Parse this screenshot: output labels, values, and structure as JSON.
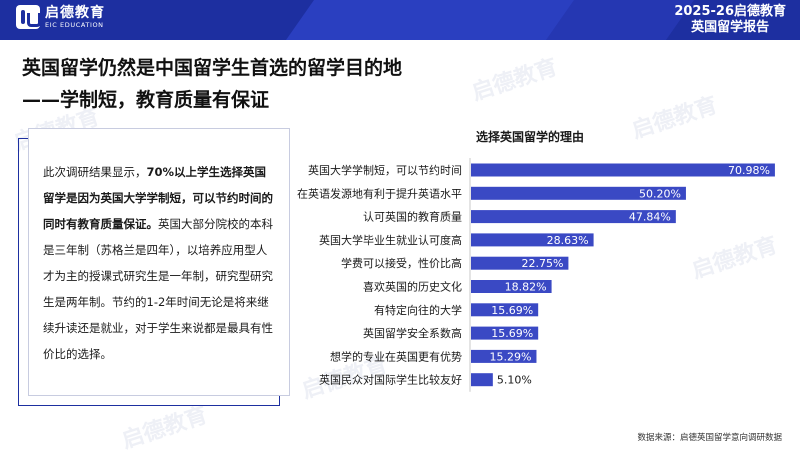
{
  "header": {
    "logo_cn": "启德教育",
    "logo_en": "EIC EDUCATION",
    "report_line1": "2025-26启德教育",
    "report_line2": "英国留学报告"
  },
  "headline": {
    "line1": "英国留学仍然是中国留学生首选的留学目的地",
    "line2": "——学制短，教育质量有保证"
  },
  "card": {
    "intro": "此次调研结果显示，",
    "emphasis": "70%以上学生选择英国留学是因为英国大学学制短，可以节约时间的同时有教育质量保证。",
    "body": "英国大部分院校的本科是三年制（苏格兰是四年），以培养应用型人才为主的授课式研究生是一年制，研究型研究生是两年制。节约的1-2年时间无论是将来继续升读还是就业，对于学生来说都是最具有性价比的选择。"
  },
  "colors": {
    "bar": "#3a49c4",
    "brand": "#1d2fa0"
  },
  "chart_data": {
    "type": "bar",
    "orientation": "horizontal",
    "title": "选择英国留学的理由",
    "categories": [
      "英国大学学制短，可以节约时间",
      "在英语发源地有利于提升英语水平",
      "认可英国的教育质量",
      "英国大学毕业生就业认可度高",
      "学费可以接受，性价比高",
      "喜欢英国的历史文化",
      "有特定向往的大学",
      "英国留学安全系数高",
      "想学的专业在英国更有优势",
      "英国民众对国际学生比较友好"
    ],
    "values": [
      70.98,
      50.2,
      47.84,
      28.63,
      22.75,
      18.82,
      15.69,
      15.69,
      15.29,
      5.1
    ],
    "value_labels": [
      "70.98%",
      "50.20%",
      "47.84%",
      "28.63%",
      "22.75%",
      "18.82%",
      "15.69%",
      "15.69%",
      "15.29%",
      "5.10%"
    ],
    "xlim": [
      0,
      71
    ],
    "grid": false,
    "legend": "none"
  },
  "source": "数据来源：启德英国留学意向调研数据"
}
